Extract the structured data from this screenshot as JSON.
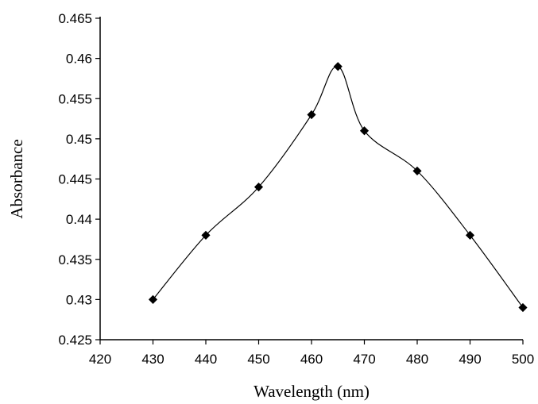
{
  "chart_data": {
    "type": "line",
    "title": "",
    "xlabel": "Wavelength (nm)",
    "ylabel": "Absorbance",
    "xlim": [
      420,
      500
    ],
    "ylim": [
      0.425,
      0.465
    ],
    "x_ticks": [
      {
        "value": 420,
        "label": "420"
      },
      {
        "value": 430,
        "label": "430"
      },
      {
        "value": 440,
        "label": "440"
      },
      {
        "value": 450,
        "label": "450"
      },
      {
        "value": 460,
        "label": "460"
      },
      {
        "value": 470,
        "label": "470"
      },
      {
        "value": 480,
        "label": "480"
      },
      {
        "value": 490,
        "label": "490"
      },
      {
        "value": 500,
        "label": "500"
      }
    ],
    "y_ticks": [
      {
        "value": 0.425,
        "label": "0.425"
      },
      {
        "value": 0.43,
        "label": "0.43"
      },
      {
        "value": 0.435,
        "label": "0.435"
      },
      {
        "value": 0.44,
        "label": "0.44"
      },
      {
        "value": 0.445,
        "label": "0.445"
      },
      {
        "value": 0.45,
        "label": "0.45"
      },
      {
        "value": 0.455,
        "label": "0.455"
      },
      {
        "value": 0.46,
        "label": "0.46"
      },
      {
        "value": 0.465,
        "label": "0.465"
      }
    ],
    "grid": false,
    "legend": "none",
    "series": [
      {
        "marker": "diamond",
        "color": "#000000",
        "smoothed": true,
        "points": [
          {
            "x": 430,
            "y": 0.43
          },
          {
            "x": 440,
            "y": 0.438
          },
          {
            "x": 450,
            "y": 0.444
          },
          {
            "x": 460,
            "y": 0.453
          },
          {
            "x": 465,
            "y": 0.459
          },
          {
            "x": 470,
            "y": 0.451
          },
          {
            "x": 480,
            "y": 0.446
          },
          {
            "x": 490,
            "y": 0.438
          },
          {
            "x": 500,
            "y": 0.429
          }
        ]
      }
    ]
  }
}
